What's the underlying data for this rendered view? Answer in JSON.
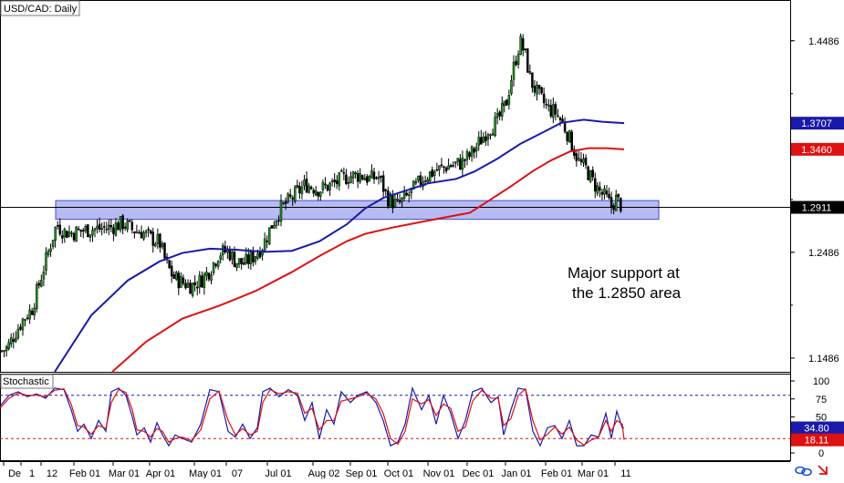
{
  "chart_data": [
    {
      "type": "candlestick",
      "title": "USD/CAD: Daily",
      "xlabels": [
        "De",
        "1",
        "12",
        "Feb 01",
        "Mar 01",
        "Apr 01",
        "May 01",
        "07",
        "Jul 01",
        "Aug 02",
        "Sep 01",
        "Oct 01",
        "Nov 01",
        "Dec 01",
        "Jan 01",
        "Feb 01",
        "Mar 01",
        "11"
      ],
      "yticks": [
        1.1486,
        1.2486,
        1.4486
      ],
      "ylim": [
        1.1356,
        1.4863
      ],
      "grid": false,
      "price_path": [
        [
          0,
          1.155
        ],
        [
          8,
          1.158
        ],
        [
          15,
          1.17
        ],
        [
          25,
          1.185
        ],
        [
          35,
          1.195
        ],
        [
          45,
          1.225
        ],
        [
          55,
          1.255
        ],
        [
          62,
          1.275
        ],
        [
          70,
          1.268
        ],
        [
          80,
          1.267
        ],
        [
          95,
          1.27
        ],
        [
          110,
          1.271
        ],
        [
          120,
          1.272
        ],
        [
          135,
          1.276
        ],
        [
          145,
          1.27
        ],
        [
          155,
          1.268
        ],
        [
          165,
          1.262
        ],
        [
          175,
          1.258
        ],
        [
          182,
          1.238
        ],
        [
          190,
          1.225
        ],
        [
          200,
          1.22
        ],
        [
          210,
          1.217
        ],
        [
          220,
          1.222
        ],
        [
          230,
          1.232
        ],
        [
          240,
          1.248
        ],
        [
          250,
          1.25
        ],
        [
          258,
          1.24
        ],
        [
          268,
          1.238
        ],
        [
          278,
          1.245
        ],
        [
          288,
          1.255
        ],
        [
          298,
          1.275
        ],
        [
          308,
          1.29
        ],
        [
          320,
          1.3
        ],
        [
          335,
          1.313
        ],
        [
          350,
          1.308
        ],
        [
          365,
          1.313
        ],
        [
          380,
          1.32
        ],
        [
          395,
          1.322
        ],
        [
          405,
          1.318
        ],
        [
          415,
          1.32
        ],
        [
          425,
          1.3
        ],
        [
          435,
          1.293
        ],
        [
          445,
          1.3
        ],
        [
          455,
          1.31
        ],
        [
          465,
          1.32
        ],
        [
          478,
          1.326
        ],
        [
          490,
          1.33
        ],
        [
          505,
          1.333
        ],
        [
          515,
          1.34
        ],
        [
          525,
          1.352
        ],
        [
          535,
          1.365
        ],
        [
          545,
          1.372
        ],
        [
          555,
          1.39
        ],
        [
          562,
          1.42
        ],
        [
          570,
          1.448
        ],
        [
          575,
          1.437
        ],
        [
          582,
          1.41
        ],
        [
          590,
          1.397
        ],
        [
          600,
          1.385
        ],
        [
          610,
          1.38
        ],
        [
          620,
          1.365
        ],
        [
          628,
          1.348
        ],
        [
          635,
          1.333
        ],
        [
          642,
          1.328
        ],
        [
          650,
          1.315
        ],
        [
          658,
          1.305
        ],
        [
          664,
          1.3
        ],
        [
          670,
          1.292
        ],
        [
          675,
          1.299
        ],
        [
          682,
          1.292
        ]
      ],
      "series": [
        {
          "name": "",
          "color": "#1a1aaa",
          "values": [
            [
              60,
              1.1356
            ],
            [
              100,
              1.189
            ],
            [
              140,
              1.222
            ],
            [
              175,
              1.24
            ],
            [
              200,
              1.248
            ],
            [
              230,
              1.252
            ],
            [
              260,
              1.251
            ],
            [
              290,
              1.249
            ],
            [
              320,
              1.25
            ],
            [
              350,
              1.259
            ],
            [
              380,
              1.275
            ],
            [
              400,
              1.29
            ],
            [
              420,
              1.3
            ],
            [
              445,
              1.307
            ],
            [
              470,
              1.314
            ],
            [
              500,
              1.318
            ],
            [
              520,
              1.325
            ],
            [
              545,
              1.337
            ],
            [
              570,
              1.351
            ],
            [
              595,
              1.362
            ],
            [
              615,
              1.371
            ],
            [
              640,
              1.374
            ],
            [
              660,
              1.372
            ],
            [
              684,
              1.3707
            ]
          ]
        },
        {
          "name": "",
          "color": "#dd1111",
          "values": [
            [
              123,
              1.1356
            ],
            [
              160,
              1.164
            ],
            [
              200,
              1.186
            ],
            [
              240,
              1.198
            ],
            [
              280,
              1.212
            ],
            [
              320,
              1.23
            ],
            [
              350,
              1.245
            ],
            [
              380,
              1.259
            ],
            [
              400,
              1.266
            ],
            [
              430,
              1.272
            ],
            [
              460,
              1.277
            ],
            [
              490,
              1.282
            ],
            [
              515,
              1.286
            ],
            [
              535,
              1.297
            ],
            [
              560,
              1.311
            ],
            [
              585,
              1.326
            ],
            [
              605,
              1.336
            ],
            [
              625,
              1.344
            ],
            [
              645,
              1.347
            ],
            [
              665,
              1.347
            ],
            [
              684,
              1.346
            ]
          ]
        }
      ],
      "support_zone": [
        1.2798,
        1.2975
      ],
      "current_line": 1.2911,
      "price_labels": [
        {
          "text": "1.3707",
          "color": "#1a1aaa"
        },
        {
          "text": "1.3460",
          "color": "#dd1111"
        },
        {
          "text": "1.2911",
          "color": "#000000"
        }
      ],
      "annotation": [
        "Major support at",
        "the 1.2850 area"
      ]
    },
    {
      "type": "line",
      "title": "Stochastic",
      "ylim": [
        0,
        100
      ],
      "yticks": [
        0,
        25,
        50,
        75,
        100
      ],
      "levels": [
        {
          "value": 80,
          "color": "#1a1aaa"
        },
        {
          "value": 20,
          "color": "#dd1111"
        }
      ],
      "series": [
        {
          "name": "",
          "color": "#1a1aaa",
          "values": [
            [
              0,
              65
            ],
            [
              10,
              80
            ],
            [
              20,
              85
            ],
            [
              30,
              78
            ],
            [
              40,
              82
            ],
            [
              50,
              76
            ],
            [
              60,
              90
            ],
            [
              70,
              88
            ],
            [
              78,
              60
            ],
            [
              85,
              30
            ],
            [
              92,
              40
            ],
            [
              100,
              20
            ],
            [
              108,
              45
            ],
            [
              116,
              30
            ],
            [
              122,
              85
            ],
            [
              130,
              90
            ],
            [
              138,
              80
            ],
            [
              145,
              50
            ],
            [
              150,
              25
            ],
            [
              158,
              35
            ],
            [
              165,
              15
            ],
            [
              172,
              42
            ],
            [
              178,
              25
            ],
            [
              185,
              10
            ],
            [
              192,
              25
            ],
            [
              200,
              20
            ],
            [
              210,
              15
            ],
            [
              220,
              40
            ],
            [
              230,
              88
            ],
            [
              240,
              85
            ],
            [
              250,
              30
            ],
            [
              258,
              22
            ],
            [
              266,
              40
            ],
            [
              274,
              20
            ],
            [
              282,
              35
            ],
            [
              288,
              85
            ],
            [
              296,
              90
            ],
            [
              306,
              78
            ],
            [
              316,
              88
            ],
            [
              326,
              80
            ],
            [
              334,
              45
            ],
            [
              342,
              70
            ],
            [
              350,
              20
            ],
            [
              358,
              60
            ],
            [
              366,
              40
            ],
            [
              374,
              85
            ],
            [
              384,
              70
            ],
            [
              392,
              80
            ],
            [
              402,
              85
            ],
            [
              412,
              70
            ],
            [
              420,
              45
            ],
            [
              428,
              10
            ],
            [
              436,
              15
            ],
            [
              444,
              40
            ],
            [
              452,
              90
            ],
            [
              462,
              60
            ],
            [
              470,
              80
            ],
            [
              478,
              40
            ],
            [
              486,
              80
            ],
            [
              494,
              55
            ],
            [
              502,
              20
            ],
            [
              510,
              45
            ],
            [
              518,
              85
            ],
            [
              528,
              90
            ],
            [
              538,
              70
            ],
            [
              546,
              78
            ],
            [
              552,
              25
            ],
            [
              560,
              60
            ],
            [
              568,
              90
            ],
            [
              576,
              88
            ],
            [
              584,
              30
            ],
            [
              592,
              10
            ],
            [
              600,
              35
            ],
            [
              608,
              38
            ],
            [
              616,
              20
            ],
            [
              624,
              45
            ],
            [
              632,
              10
            ],
            [
              640,
              10
            ],
            [
              648,
              25
            ],
            [
              656,
              22
            ],
            [
              664,
              55
            ],
            [
              670,
              20
            ],
            [
              676,
              58
            ],
            [
              682,
              35
            ],
            [
              684,
              34.8
            ]
          ]
        },
        {
          "name": "",
          "color": "#dd1111",
          "values": [
            [
              0,
              62
            ],
            [
              10,
              76
            ],
            [
              20,
              83
            ],
            [
              30,
              80
            ],
            [
              40,
              80
            ],
            [
              50,
              78
            ],
            [
              60,
              87
            ],
            [
              70,
              89
            ],
            [
              78,
              68
            ],
            [
              85,
              38
            ],
            [
              92,
              36
            ],
            [
              100,
              26
            ],
            [
              108,
              38
            ],
            [
              116,
              34
            ],
            [
              122,
              70
            ],
            [
              130,
              88
            ],
            [
              138,
              84
            ],
            [
              145,
              60
            ],
            [
              150,
              32
            ],
            [
              158,
              30
            ],
            [
              165,
              22
            ],
            [
              172,
              34
            ],
            [
              178,
              30
            ],
            [
              185,
              15
            ],
            [
              192,
              20
            ],
            [
              200,
              22
            ],
            [
              210,
              17
            ],
            [
              220,
              32
            ],
            [
              230,
              75
            ],
            [
              240,
              86
            ],
            [
              250,
              45
            ],
            [
              258,
              25
            ],
            [
              266,
              34
            ],
            [
              274,
              25
            ],
            [
              282,
              30
            ],
            [
              288,
              70
            ],
            [
              296,
              88
            ],
            [
              306,
              82
            ],
            [
              316,
              85
            ],
            [
              326,
              83
            ],
            [
              334,
              55
            ],
            [
              342,
              62
            ],
            [
              350,
              32
            ],
            [
              358,
              45
            ],
            [
              366,
              45
            ],
            [
              374,
              72
            ],
            [
              384,
              75
            ],
            [
              392,
              78
            ],
            [
              402,
              83
            ],
            [
              412,
              75
            ],
            [
              420,
              55
            ],
            [
              428,
              20
            ],
            [
              436,
              12
            ],
            [
              444,
              30
            ],
            [
              452,
              75
            ],
            [
              462,
              68
            ],
            [
              470,
              74
            ],
            [
              478,
              52
            ],
            [
              486,
              68
            ],
            [
              494,
              62
            ],
            [
              502,
              30
            ],
            [
              510,
              36
            ],
            [
              518,
              72
            ],
            [
              528,
              87
            ],
            [
              538,
              76
            ],
            [
              546,
              76
            ],
            [
              552,
              38
            ],
            [
              560,
              48
            ],
            [
              568,
              80
            ],
            [
              576,
              89
            ],
            [
              584,
              45
            ],
            [
              592,
              18
            ],
            [
              600,
              26
            ],
            [
              608,
              36
            ],
            [
              616,
              26
            ],
            [
              624,
              36
            ],
            [
              632,
              18
            ],
            [
              640,
              11
            ],
            [
              648,
              18
            ],
            [
              656,
              22
            ],
            [
              664,
              45
            ],
            [
              670,
              30
            ],
            [
              676,
              45
            ],
            [
              682,
              40
            ],
            [
              684,
              18.11
            ]
          ]
        }
      ],
      "price_labels": [
        {
          "text": "34.80",
          "color": "#1a1aaa"
        },
        {
          "text": "18.11",
          "color": "#dd1111"
        }
      ]
    }
  ]
}
